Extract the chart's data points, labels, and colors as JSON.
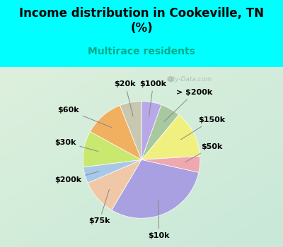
{
  "title": "Income distribution in Cookeville, TN\n(%)",
  "subtitle": "Multirace residents",
  "title_color": "#000000",
  "subtitle_color": "#00aa88",
  "background_color": "#00ffff",
  "labels": [
    "$100k",
    "> $200k",
    "$150k",
    "$50k",
    "$10k",
    "$75k",
    "$200k",
    "$30k",
    "$60k",
    "$20k"
  ],
  "sizes": [
    5.5,
    5.5,
    13.0,
    4.5,
    30.0,
    10.0,
    4.5,
    10.0,
    11.0,
    6.0
  ],
  "colors": [
    "#b8a8e8",
    "#a8c8a0",
    "#f0f080",
    "#f0a8b0",
    "#a8a0e0",
    "#f0c8a8",
    "#a8c8e8",
    "#c8e870",
    "#f0b060",
    "#c8c8b0"
  ],
  "label_fontsize": 8,
  "label_color": "#000000",
  "watermark": "City-Data.com",
  "chart_bg_colors": [
    "#d8f0d8",
    "#e8f8f0"
  ]
}
